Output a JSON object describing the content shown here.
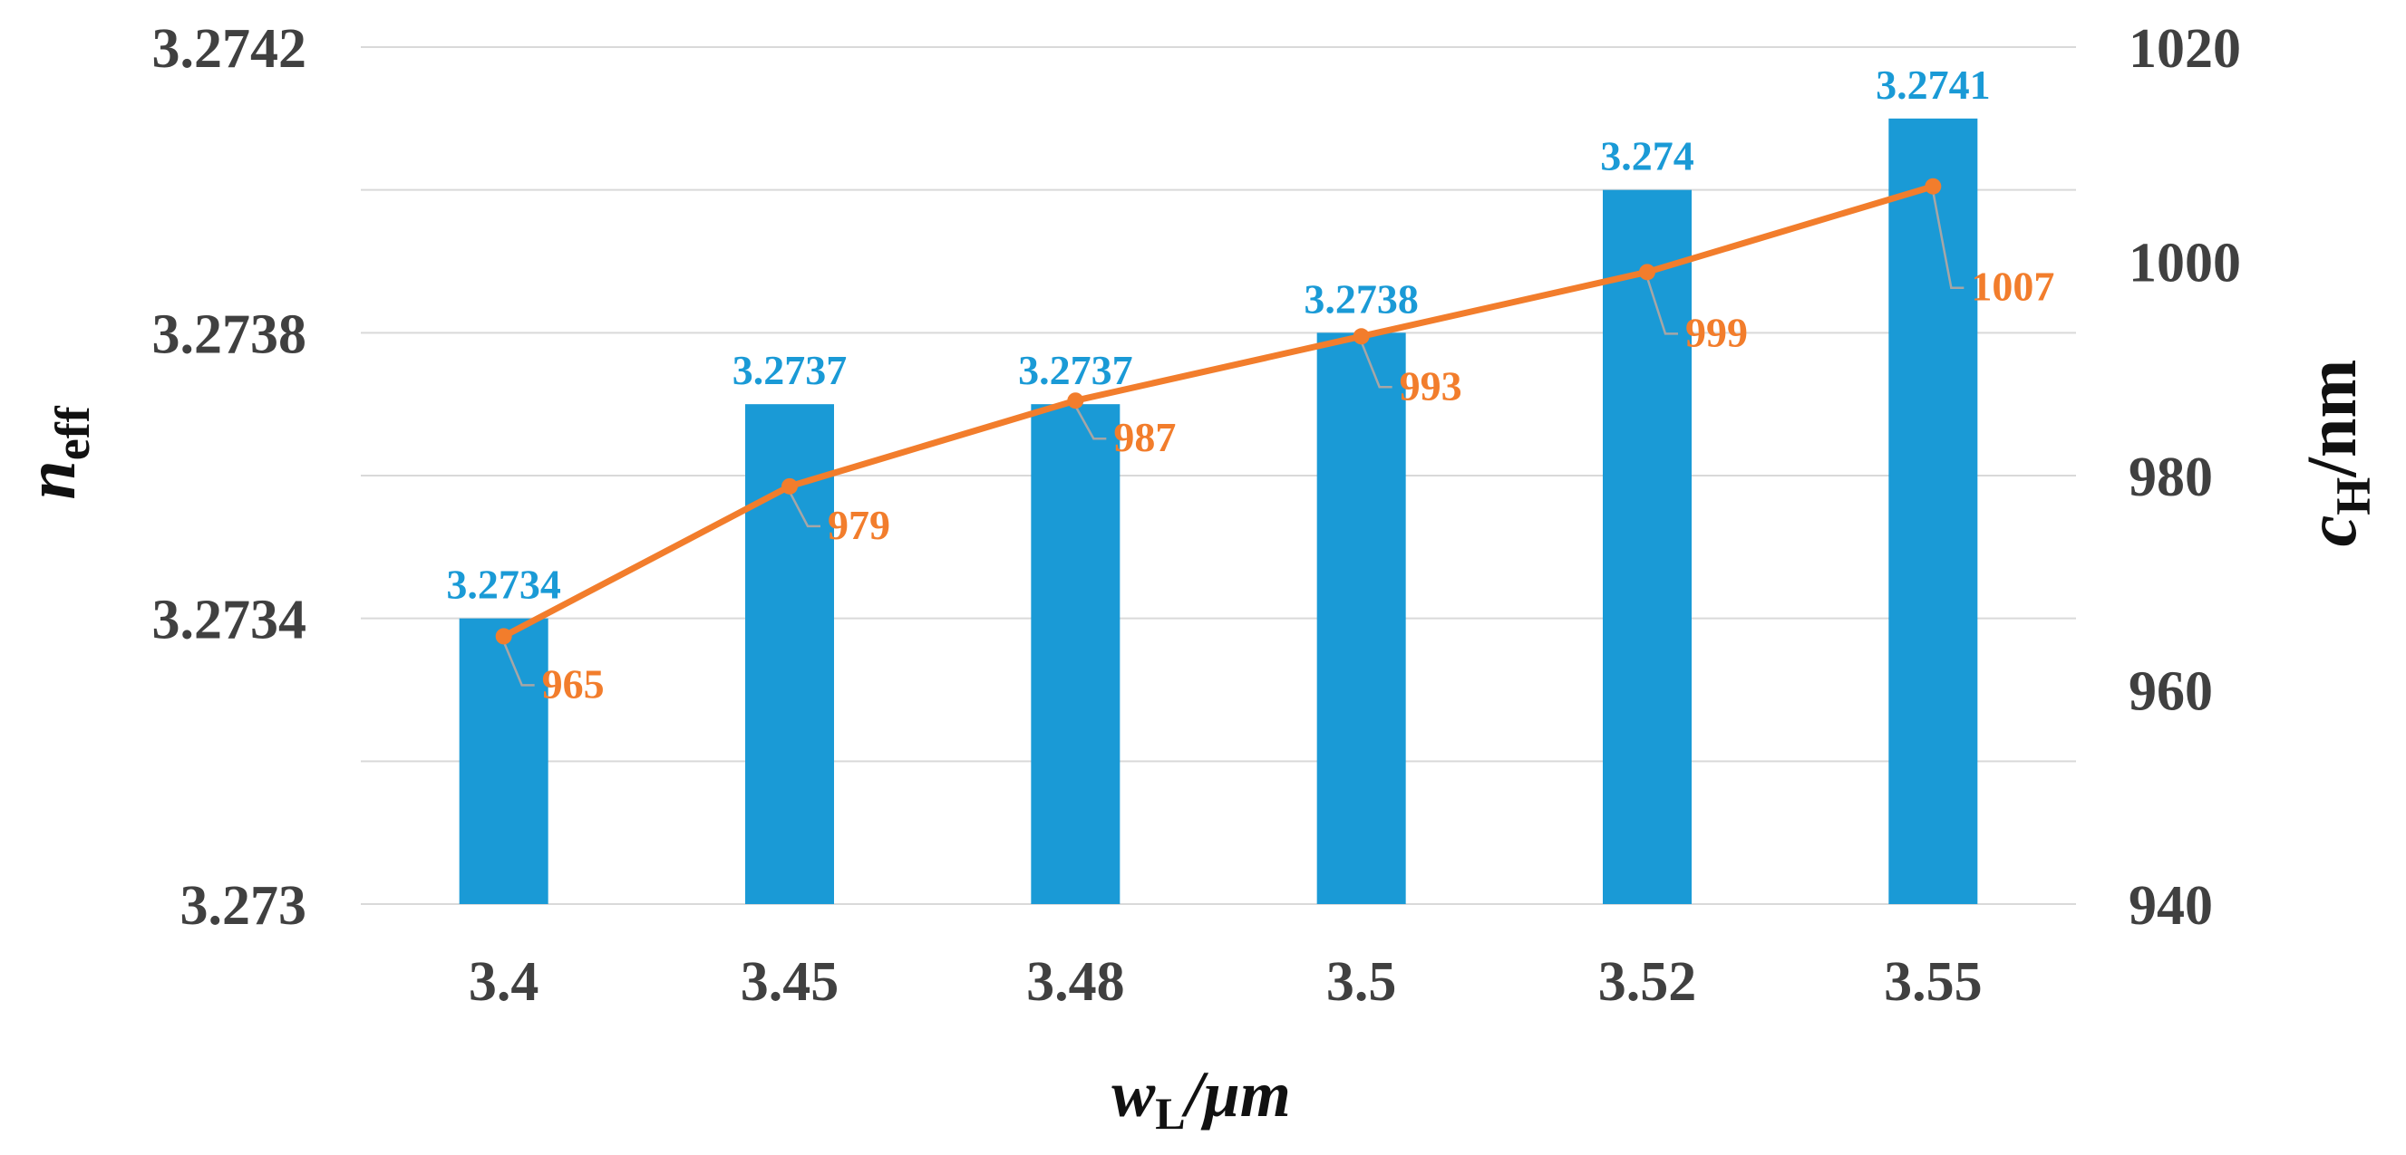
{
  "chart_data": {
    "type": "bar",
    "categories": [
      "3.4",
      "3.45",
      "3.48",
      "3.5",
      "3.52",
      "3.55"
    ],
    "series": [
      {
        "type": "bar",
        "axis": "left",
        "values": [
          3.2734,
          3.2737,
          3.2737,
          3.2738,
          3.274,
          3.2741
        ],
        "labels": [
          "3.2734",
          "3.2737",
          "3.2737",
          "3.2738",
          "3.274",
          "3.2741"
        ],
        "color": "#1a9ad6"
      },
      {
        "type": "line",
        "axis": "right",
        "values": [
          965,
          979,
          987,
          993,
          999,
          1007
        ],
        "labels": [
          "965",
          "979",
          "987",
          "993",
          "999",
          "1007"
        ],
        "color": "#f27d2c"
      }
    ],
    "y_left": {
      "label_main": "n",
      "label_sub": "eff",
      "ylim": [
        3.273,
        3.2742
      ],
      "ticks": [
        "3.273",
        "3.2734",
        "3.2738",
        "3.2742"
      ]
    },
    "y_right": {
      "label_main": "c",
      "label_sub": "H",
      "label_suffix": "/nm",
      "ylim": [
        940,
        1020
      ],
      "ticks": [
        "940",
        "960",
        "980",
        "1000",
        "1020"
      ]
    },
    "x_axis": {
      "label_main": "w",
      "label_sub": "L",
      "label_suffix": "/μm"
    },
    "grid": true,
    "legend": "none",
    "colors": {
      "bar": "#1a9ad6",
      "line": "#f27d2c",
      "grid": "#d9d9d9",
      "leader": "#a6a6a6"
    }
  }
}
